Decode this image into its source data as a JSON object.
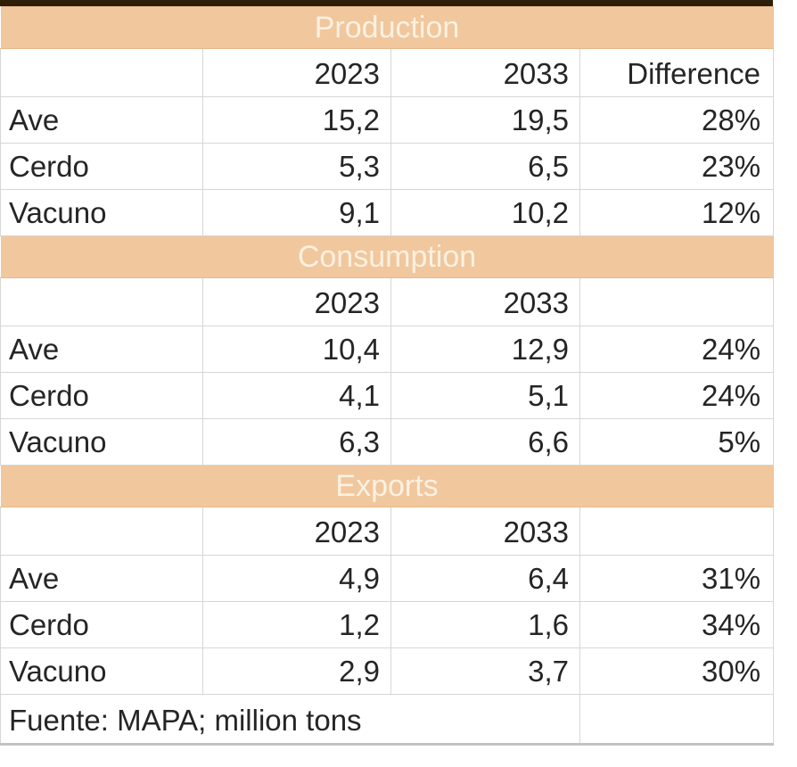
{
  "colors": {
    "band_background": "#f1c79e",
    "band_text": "#fbf1e0",
    "top_border": "#2f1f08",
    "gridline": "#d6d6d6",
    "cell_text": "#252525"
  },
  "ui": {
    "sections": [
      {
        "title": "Production",
        "col_headers": [
          "2023",
          "2033",
          "Difference"
        ],
        "rows": [
          {
            "label": "Ave",
            "y2023": "15,2",
            "y2033": "19,5",
            "diff": "28%"
          },
          {
            "label": "Cerdo",
            "y2023": "5,3",
            "y2033": "6,5",
            "diff": "23%"
          },
          {
            "label": "Vacuno",
            "y2023": "9,1",
            "y2033": "10,2",
            "diff": "12%"
          }
        ]
      },
      {
        "title": "Consumption",
        "col_headers": [
          "2023",
          "2033",
          ""
        ],
        "rows": [
          {
            "label": "Ave",
            "y2023": "10,4",
            "y2033": "12,9",
            "diff": "24%"
          },
          {
            "label": "Cerdo",
            "y2023": "4,1",
            "y2033": "5,1",
            "diff": "24%"
          },
          {
            "label": "Vacuno",
            "y2023": "6,3",
            "y2033": "6,6",
            "diff": "5%"
          }
        ]
      },
      {
        "title": "Exports",
        "col_headers": [
          "2023",
          "2033",
          ""
        ],
        "rows": [
          {
            "label": "Ave",
            "y2023": "4,9",
            "y2033": "6,4",
            "diff": "31%"
          },
          {
            "label": "Cerdo",
            "y2023": "1,2",
            "y2033": "1,6",
            "diff": "34%"
          },
          {
            "label": "Vacuno",
            "y2023": "2,9",
            "y2033": "3,7",
            "diff": "30%"
          }
        ]
      }
    ],
    "footer": {
      "text": "Fuente: MAPA; million tons"
    }
  },
  "chart_data": {
    "type": "table",
    "columns": [
      "",
      "2023",
      "2033",
      "Difference"
    ],
    "sections": [
      {
        "title": "Production",
        "rows": [
          [
            "Ave",
            15.2,
            19.5,
            "28%"
          ],
          [
            "Cerdo",
            5.3,
            6.5,
            "23%"
          ],
          [
            "Vacuno",
            9.1,
            10.2,
            "12%"
          ]
        ]
      },
      {
        "title": "Consumption",
        "rows": [
          [
            "Ave",
            10.4,
            12.9,
            "24%"
          ],
          [
            "Cerdo",
            4.1,
            5.1,
            "24%"
          ],
          [
            "Vacuno",
            6.3,
            6.6,
            "5%"
          ]
        ]
      },
      {
        "title": "Exports",
        "rows": [
          [
            "Ave",
            4.9,
            6.4,
            "31%"
          ],
          [
            "Cerdo",
            1.2,
            1.6,
            "34%"
          ],
          [
            "Vacuno",
            2.9,
            3.7,
            "30%"
          ]
        ]
      }
    ],
    "source": "Fuente: MAPA; million tons",
    "units": "million tons"
  }
}
